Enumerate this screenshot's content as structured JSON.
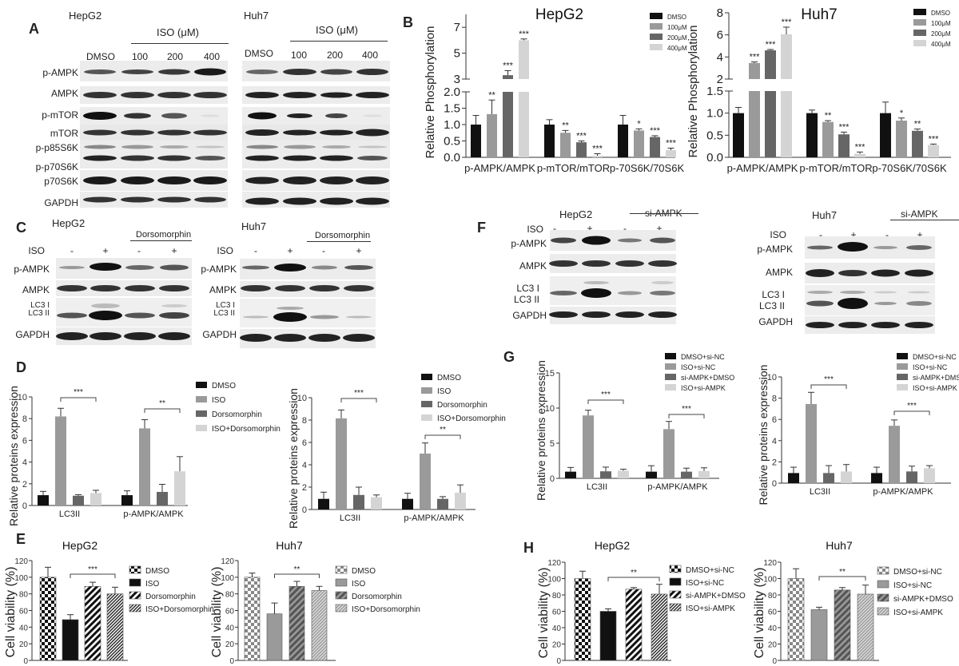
{
  "panels": {
    "A": {
      "label": "A",
      "left": {
        "cell": "HepG2",
        "treatment": "ISO (μM)",
        "lanes": [
          "DMSO",
          "100",
          "200",
          "400"
        ]
      },
      "right": {
        "cell": "Huh7",
        "treatment": "ISO (μM)",
        "lanes": [
          "DMSO",
          "100",
          "200",
          "400"
        ]
      },
      "rows": [
        "p-AMPK",
        "AMPK",
        "p-mTOR",
        "mTOR",
        "p-p85S6K",
        "p-p70S6K",
        "p70S6K",
        "GAPDH"
      ]
    },
    "B": {
      "label": "B"
    },
    "C": {
      "label": "C",
      "left": {
        "cell": "HepG2",
        "inhibitor": "Dorsomorphin",
        "iso_label": "ISO",
        "iso": [
          "-",
          "+",
          "-",
          "+"
        ]
      },
      "right": {
        "cell": "Huh7",
        "inhibitor": "Dorsomorphin",
        "iso_label": "ISO",
        "iso": [
          "-",
          "+",
          "-",
          "+"
        ]
      },
      "rows": [
        "p-AMPK",
        "AMPK",
        "LC3 I",
        "LC3 II",
        "GAPDH"
      ]
    },
    "D": {
      "label": "D"
    },
    "E": {
      "label": "E"
    },
    "F": {
      "label": "F",
      "left": {
        "cell": "HepG2",
        "knockdown": "si-AMPK",
        "iso_label": "ISO",
        "iso": [
          "-",
          "+",
          "-",
          "+"
        ]
      },
      "right": {
        "cell": "Huh7",
        "knockdown": "si-AMPK",
        "iso_label": "ISO",
        "iso": [
          "-",
          "+",
          "-",
          "+"
        ]
      },
      "rows": [
        "p-AMPK",
        "AMPK",
        "LC3 I",
        "LC3 II",
        "GAPDH"
      ]
    },
    "G": {
      "label": "G"
    },
    "H": {
      "label": "H"
    }
  },
  "chart_data": [
    {
      "id": "B-HepG2",
      "type": "bar",
      "title": "HepG2",
      "ylabel": "Relative Phosphorylation",
      "categories": [
        "p-AMPK/AMPK",
        "p-mTOR/mTOR",
        "p-70S6K/70S6K"
      ],
      "axis_break": {
        "lower": [
          0,
          2.0
        ],
        "upper": [
          3,
          8
        ]
      },
      "yticks": [
        "0.0",
        "0.5",
        "1.0",
        "1.5",
        "2.0",
        "3",
        "5",
        "7"
      ],
      "series": [
        {
          "name": "DMSO",
          "color": "#111111",
          "values": [
            1.0,
            1.0,
            1.0
          ],
          "errors": [
            0.28,
            0.15,
            0.28
          ]
        },
        {
          "name": "100μM",
          "color": "#9a9a9a",
          "values": [
            1.32,
            0.75,
            0.82
          ],
          "errors": [
            0.43,
            0.07,
            0.05
          ]
        },
        {
          "name": "200μM",
          "color": "#666666",
          "values": [
            3.3,
            0.46,
            0.62
          ],
          "errors": [
            0.35,
            0.04,
            0.04
          ]
        },
        {
          "name": "400μM",
          "color": "#d4d4d4",
          "values": [
            6.0,
            0.05,
            0.22
          ],
          "errors": [
            0.1,
            0.06,
            0.06
          ]
        }
      ],
      "significance": [
        [
          "",
          "**",
          "***",
          "***"
        ],
        [
          "",
          "**",
          "***",
          "***"
        ],
        [
          "",
          "*",
          "***",
          "***"
        ]
      ]
    },
    {
      "id": "B-Huh7",
      "type": "bar",
      "title": "Huh7",
      "ylabel": "Relative Phosphorylation",
      "categories": [
        "p-AMPK/AMPK",
        "p-mTOR/mTOR",
        "p-70S6K/70S6K"
      ],
      "axis_break": {
        "lower": [
          0,
          1.5
        ],
        "upper": [
          2,
          8
        ]
      },
      "yticks": [
        "0.0",
        "0.5",
        "1.0",
        "1.5",
        "2",
        "4",
        "6",
        "8"
      ],
      "series": [
        {
          "name": "DMSO",
          "color": "#111111",
          "values": [
            1.0,
            1.0,
            1.0
          ],
          "errors": [
            0.13,
            0.07,
            0.25
          ]
        },
        {
          "name": "100μM",
          "color": "#9a9a9a",
          "values": [
            3.45,
            0.8,
            0.83
          ],
          "errors": [
            0.1,
            0.03,
            0.06
          ]
        },
        {
          "name": "200μM",
          "color": "#666666",
          "values": [
            4.6,
            0.52,
            0.6
          ],
          "errors": [
            0.08,
            0.05,
            0.04
          ]
        },
        {
          "name": "400μM",
          "color": "#d4d4d4",
          "values": [
            6.05,
            0.08,
            0.28
          ],
          "errors": [
            0.65,
            0.04,
            0.02
          ]
        }
      ],
      "significance": [
        [
          "",
          "***",
          "***",
          "***"
        ],
        [
          "",
          "**",
          "***",
          "***"
        ],
        [
          "",
          "*",
          "**",
          "***"
        ]
      ]
    },
    {
      "id": "D-HepG2",
      "type": "bar",
      "title": "",
      "ylabel": "Relative proteins expression",
      "ylim": [
        0,
        10
      ],
      "yticks": [
        "0",
        "2",
        "4",
        "6",
        "8",
        "10"
      ],
      "categories": [
        "LC3II",
        "p-AMPK/AMPK"
      ],
      "series": [
        {
          "name": "DMSO",
          "color": "#111111",
          "values": [
            0.95,
            0.95
          ],
          "errors": [
            0.35,
            0.4
          ]
        },
        {
          "name": "ISO",
          "color": "#9a9a9a",
          "values": [
            8.2,
            7.1
          ],
          "errors": [
            0.75,
            0.8
          ]
        },
        {
          "name": "Dorsomorphin",
          "color": "#666666",
          "values": [
            0.9,
            1.25
          ],
          "errors": [
            0.1,
            0.7
          ]
        },
        {
          "name": "ISO+Dorsomorphin",
          "color": "#d4d4d4",
          "values": [
            1.15,
            3.15
          ],
          "errors": [
            0.25,
            1.35
          ]
        }
      ],
      "brackets": [
        {
          "category": "LC3II",
          "label": "***"
        },
        {
          "category": "p-AMPK/AMPK",
          "label": "**"
        }
      ]
    },
    {
      "id": "D-Huh7",
      "type": "bar",
      "title": "",
      "ylabel": "Relative proteins expression",
      "ylim": [
        0,
        10
      ],
      "yticks": [
        "0",
        "2",
        "4",
        "6",
        "8",
        "10"
      ],
      "categories": [
        "LC3II",
        "p-AMPK/AMPK"
      ],
      "series": [
        {
          "name": "DMSO",
          "color": "#111111",
          "values": [
            0.95,
            0.95
          ],
          "errors": [
            0.6,
            0.5
          ]
        },
        {
          "name": "ISO",
          "color": "#9a9a9a",
          "values": [
            8.15,
            5.0
          ],
          "errors": [
            0.75,
            0.95
          ]
        },
        {
          "name": "Dorsomorphin",
          "color": "#666666",
          "values": [
            1.3,
            0.95
          ],
          "errors": [
            0.7,
            0.2
          ]
        },
        {
          "name": "ISO+Dorsomorphin",
          "color": "#d4d4d4",
          "values": [
            1.1,
            1.5
          ],
          "errors": [
            0.2,
            0.7
          ]
        }
      ],
      "brackets": [
        {
          "category": "LC3II",
          "label": "***"
        },
        {
          "category": "p-AMPK/AMPK",
          "label": "**"
        }
      ]
    },
    {
      "id": "G-HepG2",
      "type": "bar",
      "title": "",
      "ylabel": "Relative proteins expression",
      "ylim": [
        0,
        15
      ],
      "yticks": [
        "0",
        "5",
        "10",
        "15"
      ],
      "categories": [
        "LC3II",
        "p-AMPK/AMPK"
      ],
      "series": [
        {
          "name": "DMSO+si-NC",
          "color": "#111111",
          "values": [
            0.95,
            0.95
          ],
          "errors": [
            0.6,
            0.85
          ]
        },
        {
          "name": "ISO+si-NC",
          "color": "#9a9a9a",
          "values": [
            8.95,
            7.0
          ],
          "errors": [
            0.75,
            1.1
          ]
        },
        {
          "name": "si-AMPK+DMSO",
          "color": "#666666",
          "values": [
            1.0,
            0.95
          ],
          "errors": [
            0.6,
            0.5
          ]
        },
        {
          "name": "ISO+si-AMPK",
          "color": "#d4d4d4",
          "values": [
            1.1,
            1.05
          ],
          "errors": [
            0.2,
            0.45
          ]
        }
      ],
      "brackets": [
        {
          "category": "LC3II",
          "label": "***"
        },
        {
          "category": "p-AMPK/AMPK",
          "label": "***"
        }
      ]
    },
    {
      "id": "G-Huh7",
      "type": "bar",
      "title": "",
      "ylabel": "Relative proteins expression",
      "ylim": [
        0,
        10
      ],
      "yticks": [
        "0",
        "2",
        "4",
        "6",
        "8",
        "10"
      ],
      "categories": [
        "LC3II",
        "p-AMPK/AMPK"
      ],
      "series": [
        {
          "name": "DMSO+si-NC",
          "color": "#111111",
          "values": [
            0.95,
            0.95
          ],
          "errors": [
            0.55,
            0.55
          ]
        },
        {
          "name": "ISO+si-NC",
          "color": "#9a9a9a",
          "values": [
            7.45,
            5.4
          ],
          "errors": [
            1.1,
            0.55
          ]
        },
        {
          "name": "si-AMPK+DMSO",
          "color": "#666666",
          "values": [
            0.95,
            1.1
          ],
          "errors": [
            0.7,
            0.5
          ]
        },
        {
          "name": "ISO+si-AMPK",
          "color": "#d4d4d4",
          "values": [
            1.1,
            1.4
          ],
          "errors": [
            0.65,
            0.25
          ]
        }
      ],
      "brackets": [
        {
          "category": "LC3II",
          "label": "***"
        },
        {
          "category": "p-AMPK/AMPK",
          "label": "***"
        }
      ]
    },
    {
      "id": "E-HepG2",
      "type": "bar",
      "title": "HepG2",
      "ylabel": "Cell viability (%)",
      "ylim": [
        0,
        120
      ],
      "yticks": [
        "0",
        "20",
        "40",
        "60",
        "80",
        "100",
        "120"
      ],
      "categories": [
        "DMSO",
        "ISO",
        "Dorsomorphin",
        "ISO+Dorsomorphin"
      ],
      "values": [
        100,
        49,
        89,
        80
      ],
      "errors": [
        12,
        6,
        5,
        8
      ],
      "patterns": [
        "checker",
        "solid-black",
        "wide-stripe",
        "fine-stripe"
      ],
      "bracket": {
        "from": "ISO",
        "to": "ISO+Dorsomorphin",
        "label": "***"
      }
    },
    {
      "id": "E-Huh7",
      "type": "bar",
      "title": "Huh7",
      "ylabel": "Cell viability (%)",
      "ylim": [
        0,
        120
      ],
      "yticks": [
        "0",
        "20",
        "40",
        "60",
        "80",
        "100",
        "120"
      ],
      "categories": [
        "DMSO",
        "ISO",
        "Dorsomorphin",
        "ISO+Dorsomorphin"
      ],
      "values": [
        100,
        56,
        89,
        84
      ],
      "errors": [
        5,
        13,
        6,
        5
      ],
      "patterns": [
        "checker-gray",
        "solid-gray",
        "wide-stripe-gray",
        "fine-stripe-gray"
      ],
      "bracket": {
        "from": "ISO",
        "to": "ISO+Dorsomorphin",
        "label": "**"
      }
    },
    {
      "id": "H-HepG2",
      "type": "bar",
      "title": "HepG2",
      "ylabel": "Cell viability (%)",
      "ylim": [
        0,
        120
      ],
      "yticks": [
        "0",
        "20",
        "40",
        "60",
        "80",
        "100",
        "120"
      ],
      "categories": [
        "DMSO+si-NC",
        "ISO+si-NC",
        "si-AMPK+DMSO",
        "ISO+si-AMPK"
      ],
      "values": [
        100,
        60,
        87,
        81
      ],
      "errors": [
        9,
        3,
        2,
        12
      ],
      "patterns": [
        "checker",
        "solid-black",
        "wide-stripe",
        "fine-stripe"
      ],
      "bracket": {
        "from": "ISO+si-NC",
        "to": "ISO+si-AMPK",
        "label": "**"
      }
    },
    {
      "id": "H-Huh7",
      "type": "bar",
      "title": "Huh7",
      "ylabel": "Cell viability (%)",
      "ylim": [
        0,
        120
      ],
      "yticks": [
        "0",
        "20",
        "40",
        "60",
        "80",
        "100",
        "120"
      ],
      "categories": [
        "DMSO+si-NC",
        "ISO+si-NC",
        "si-AMPK+DMSO",
        "ISO+si-AMPK"
      ],
      "values": [
        100,
        62,
        86,
        81
      ],
      "errors": [
        12,
        3,
        3,
        11
      ],
      "patterns": [
        "checker-gray",
        "solid-gray",
        "wide-stripe-gray",
        "fine-stripe-gray"
      ],
      "bracket": {
        "from": "ISO+si-NC",
        "to": "ISO+si-AMPK",
        "label": "**"
      }
    }
  ]
}
